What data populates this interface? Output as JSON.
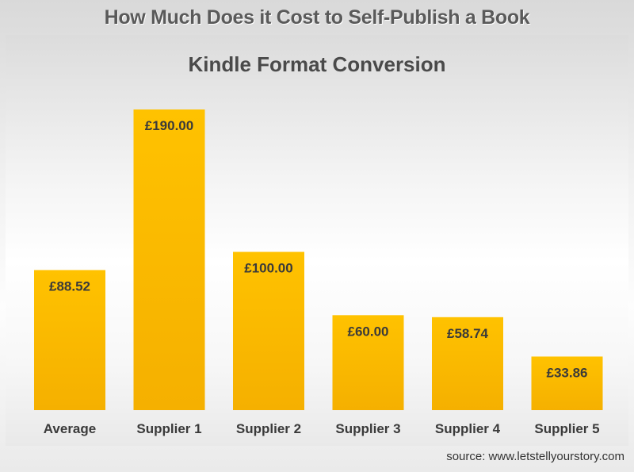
{
  "page_title": "How Much Does it Cost to Self-Publish a Book",
  "source": "source: www.letstellyourstory.com",
  "colors": {
    "bar": "#fbb800",
    "bar_light": "#ffc61a",
    "label_text": "#3a3a3a"
  },
  "chart_data": {
    "type": "bar",
    "title": "Kindle Format Conversion",
    "xlabel": "",
    "ylabel": "",
    "ylim": [
      0,
      190
    ],
    "grid": false,
    "categories": [
      "Average",
      "Supplier 1",
      "Supplier 2",
      "Supplier 3",
      "Supplier 4",
      "Supplier 5"
    ],
    "values": [
      88.52,
      190.0,
      100.0,
      60.0,
      58.74,
      33.86
    ],
    "data_labels": [
      "£88.52",
      "£190.00",
      "£100.00",
      "£60.00",
      "£58.74",
      "£33.86"
    ]
  }
}
